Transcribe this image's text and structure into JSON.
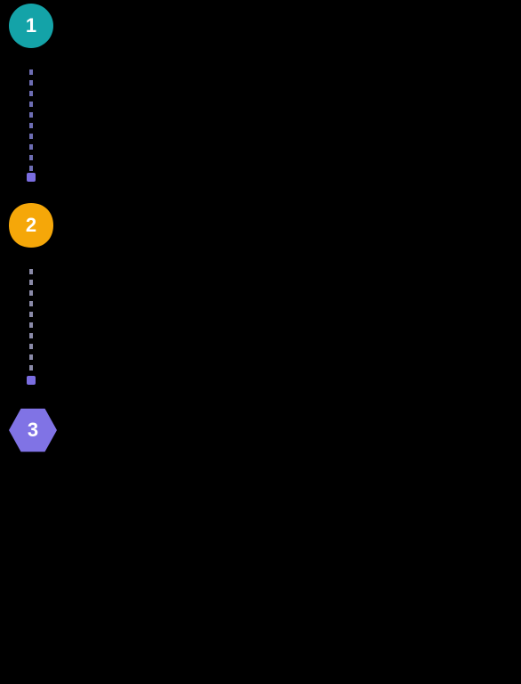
{
  "diagram": {
    "type": "flowchart",
    "background_color": "#000000",
    "steps": [
      {
        "label": "1",
        "shape": "circle",
        "bg_color": "#14a3a8",
        "text_color": "#ffffff",
        "font_size": 22
      },
      {
        "label": "2",
        "shape": "squircle",
        "bg_color": "#f5a709",
        "text_color": "#ffffff",
        "font_size": 22
      },
      {
        "label": "3",
        "shape": "hexagon",
        "bg_color": "#8073e5",
        "text_color": "#ffffff",
        "font_size": 22
      }
    ],
    "connectors": [
      {
        "from": 0,
        "to": 1,
        "style": "dashed",
        "dash_color": "#6d6db3",
        "dot_color": "#7a6de0"
      },
      {
        "from": 1,
        "to": 2,
        "style": "dashed",
        "dash_color": "#8a8aa8",
        "dot_color": "#7a6de0"
      }
    ]
  }
}
